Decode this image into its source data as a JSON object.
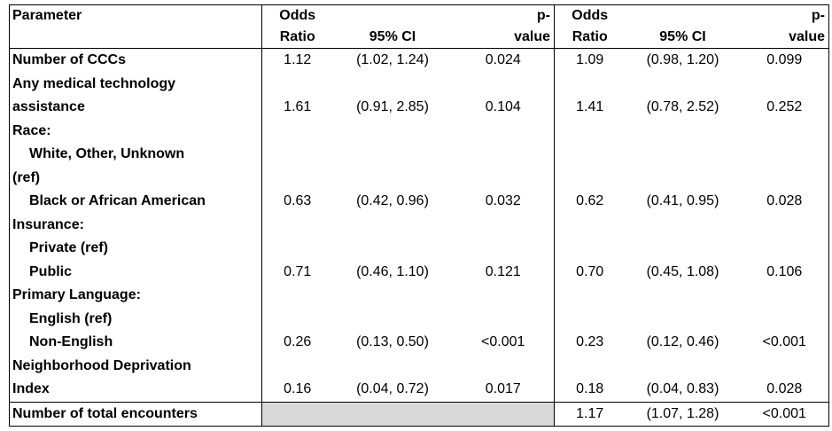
{
  "headers": {
    "parameter": "Parameter",
    "or1_line1": "Odds",
    "or1_line2": "Ratio",
    "ci1": "95% CI",
    "p1_line1": "p-",
    "p1_line2": "value",
    "or2_line1": "Odds",
    "or2_line2": "Ratio",
    "ci2": "95% CI",
    "p2_line1": "p-",
    "p2_line2": "value"
  },
  "rows": [
    {
      "label": "Number of CCCs",
      "or1": "1.12",
      "ci1": "(1.02, 1.24)",
      "p1": "0.024",
      "or2": "1.09",
      "ci2": "(0.98, 1.20)",
      "p2": "0.099"
    },
    {
      "label": "Any medical technology",
      "or1": "",
      "ci1": "",
      "p1": "",
      "or2": "",
      "ci2": "",
      "p2": ""
    },
    {
      "label": "assistance",
      "or1": "1.61",
      "ci1": "(0.91, 2.85)",
      "p1": "0.104",
      "or2": "1.41",
      "ci2": "(0.78, 2.52)",
      "p2": "0.252"
    },
    {
      "label": "Race:",
      "or1": "",
      "ci1": "",
      "p1": "",
      "or2": "",
      "ci2": "",
      "p2": ""
    },
    {
      "label": "White, Other, Unknown",
      "or1": "",
      "ci1": "",
      "p1": "",
      "or2": "",
      "ci2": "",
      "p2": ""
    },
    {
      "label": "(ref)",
      "or1": "",
      "ci1": "",
      "p1": "",
      "or2": "",
      "ci2": "",
      "p2": ""
    },
    {
      "label": "Black or African American",
      "or1": "0.63",
      "ci1": "(0.42, 0.96)",
      "p1": "0.032",
      "or2": "0.62",
      "ci2": "(0.41, 0.95)",
      "p2": "0.028"
    },
    {
      "label": "Insurance:",
      "or1": "",
      "ci1": "",
      "p1": "",
      "or2": "",
      "ci2": "",
      "p2": ""
    },
    {
      "label": "Private (ref)",
      "or1": "",
      "ci1": "",
      "p1": "",
      "or2": "",
      "ci2": "",
      "p2": ""
    },
    {
      "label": "Public",
      "or1": "0.71",
      "ci1": "(0.46, 1.10)",
      "p1": "0.121",
      "or2": "0.70",
      "ci2": "(0.45, 1.08)",
      "p2": "0.106"
    },
    {
      "label": "Primary Language:",
      "or1": "",
      "ci1": "",
      "p1": "",
      "or2": "",
      "ci2": "",
      "p2": ""
    },
    {
      "label": "English (ref)",
      "or1": "",
      "ci1": "",
      "p1": "",
      "or2": "",
      "ci2": "",
      "p2": ""
    },
    {
      "label": "Non-English",
      "or1": "0.26",
      "ci1": "(0.13, 0.50)",
      "p1": "<0.001",
      "or2": "0.23",
      "ci2": "(0.12, 0.46)",
      "p2": "<0.001"
    },
    {
      "label": "Neighborhood Deprivation",
      "or1": "",
      "ci1": "",
      "p1": "",
      "or2": "",
      "ci2": "",
      "p2": ""
    },
    {
      "label": "Index",
      "or1": "0.16",
      "ci1": "(0.04, 0.72)",
      "p1": "0.017",
      "or2": "0.18",
      "ci2": "(0.04, 0.83)",
      "p2": "0.028"
    },
    {
      "label": "Number of total encounters",
      "or1": "",
      "ci1": "",
      "p1": "",
      "or2": "1.17",
      "ci2": "(1.07, 1.28)",
      "p2": "<0.001"
    }
  ]
}
